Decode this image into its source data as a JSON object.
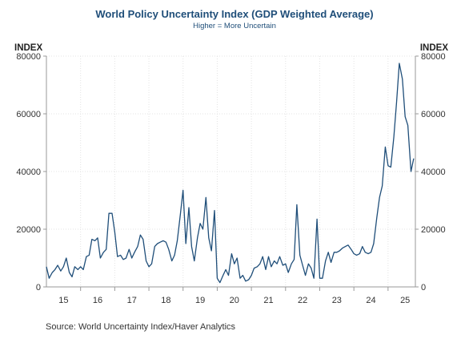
{
  "chart_data": {
    "type": "line",
    "title": "World Policy Uncertainty Index (GDP Weighted Average)",
    "subtitle": "Higher = More Uncertain",
    "left_unit": "INDEX",
    "right_unit": "INDEX",
    "source": "Source:  World Uncertainty Index/Haver Analytics",
    "ylim": [
      0,
      80000
    ],
    "y_ticks": [
      0,
      20000,
      40000,
      60000,
      80000
    ],
    "y_tick_labels": [
      "0",
      "20000",
      "40000",
      "60000",
      "80000"
    ],
    "xlim": [
      2015.0,
      2025.8
    ],
    "x_tick_labels": [
      {
        "label": "15",
        "year": 2015
      },
      {
        "label": "16",
        "year": 2016
      },
      {
        "label": "17",
        "year": 2017
      },
      {
        "label": "18",
        "year": 2018
      },
      {
        "label": "19",
        "year": 2019
      },
      {
        "label": "20",
        "year": 2020
      },
      {
        "label": "21",
        "year": 2021
      },
      {
        "label": "22",
        "year": 2022
      },
      {
        "label": "23",
        "year": 2023
      },
      {
        "label": "24",
        "year": 2024
      },
      {
        "label": "25",
        "year": 2025
      }
    ],
    "grid": true,
    "line_color": "#1f4e79",
    "series": [
      {
        "x": [
          2015.0,
          2015.08,
          2015.17,
          2015.25,
          2015.33,
          2015.42,
          2015.5,
          2015.58,
          2015.67,
          2015.75,
          2015.83,
          2015.92,
          2016.0,
          2016.08,
          2016.17,
          2016.25,
          2016.33,
          2016.42,
          2016.5,
          2016.58,
          2016.67,
          2016.75,
          2016.83,
          2016.92,
          2017.0,
          2017.08,
          2017.17,
          2017.25,
          2017.33,
          2017.42,
          2017.5,
          2017.58,
          2017.67,
          2017.75,
          2017.83,
          2017.92,
          2018.0,
          2018.08,
          2018.17,
          2018.25,
          2018.33,
          2018.42,
          2018.5,
          2018.58,
          2018.67,
          2018.75,
          2018.83,
          2018.92,
          2019.0,
          2019.08,
          2019.17,
          2019.25,
          2019.33,
          2019.42,
          2019.5,
          2019.58,
          2019.67,
          2019.75,
          2019.83,
          2019.92,
          2020.0,
          2020.08,
          2020.17,
          2020.25,
          2020.33,
          2020.42,
          2020.5,
          2020.58,
          2020.67,
          2020.75,
          2020.83,
          2020.92,
          2021.0,
          2021.08,
          2021.17,
          2021.25,
          2021.33,
          2021.42,
          2021.5,
          2021.58,
          2021.67,
          2021.75,
          2021.83,
          2021.92,
          2022.0,
          2022.08,
          2022.17,
          2022.25,
          2022.33,
          2022.42,
          2022.5,
          2022.58,
          2022.67,
          2022.75,
          2022.83,
          2022.92,
          2023.0,
          2023.08,
          2023.17,
          2023.25,
          2023.33,
          2023.42,
          2023.5,
          2023.58,
          2023.67,
          2023.75,
          2023.83,
          2023.92,
          2024.0,
          2024.08,
          2024.17,
          2024.25,
          2024.33,
          2024.42,
          2024.5,
          2024.58,
          2024.67,
          2024.75,
          2024.83,
          2024.92,
          2025.0,
          2025.08,
          2025.17,
          2025.25,
          2025.33,
          2025.42,
          2025.5,
          2025.58,
          2025.67,
          2025.75
        ],
        "values": [
          7000,
          3000,
          5000,
          6000,
          7500,
          5500,
          7000,
          10000,
          5000,
          3500,
          7000,
          6000,
          7000,
          6000,
          10500,
          11000,
          16500,
          16000,
          17000,
          10000,
          12000,
          13000,
          25500,
          25500,
          19000,
          10500,
          11000,
          9500,
          10000,
          13000,
          10000,
          12000,
          14000,
          18000,
          16500,
          9000,
          7000,
          8000,
          14000,
          15000,
          15500,
          16000,
          15500,
          13000,
          9000,
          11000,
          16000,
          25000,
          33500,
          15000,
          27500,
          14000,
          9000,
          17000,
          22000,
          20000,
          31000,
          17000,
          12500,
          26500,
          3000,
          1500,
          4000,
          6000,
          4000,
          11500,
          8000,
          10000,
          3000,
          4000,
          2000,
          2500,
          4000,
          6500,
          7000,
          8000,
          10500,
          6000,
          10500,
          7000,
          9000,
          8000,
          10500,
          7500,
          8000,
          5000,
          8000,
          9500,
          28500,
          11000,
          7500,
          4000,
          8000,
          6500,
          3000,
          23500,
          3000,
          3000,
          9000,
          12000,
          8500,
          12000,
          12000,
          12500,
          13500,
          14000,
          14500,
          13000,
          11500,
          11000,
          11500,
          14000,
          12000,
          11500,
          12000,
          15000,
          24000,
          31000,
          35000,
          48500,
          42000,
          41500,
          52000,
          64000,
          77500,
          72000,
          59000,
          56000,
          40000,
          44500
        ]
      }
    ]
  }
}
